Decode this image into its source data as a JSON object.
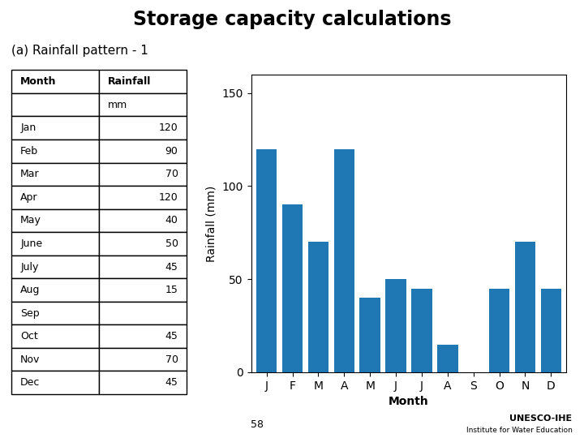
{
  "chart_data": [
    {
      "type": "table",
      "columns": [
        "Month",
        "Rainfall"
      ],
      "units": [
        null,
        "mm"
      ],
      "rows": [
        [
          "Jan",
          120
        ],
        [
          "Feb",
          90
        ],
        [
          "Mar",
          70
        ],
        [
          "Apr",
          120
        ],
        [
          "May",
          40
        ],
        [
          "June",
          50
        ],
        [
          "July",
          45
        ],
        [
          "Aug",
          15
        ],
        [
          "Sep",
          null
        ],
        [
          "Oct",
          45
        ],
        [
          "Nov",
          70
        ],
        [
          "Dec",
          45
        ]
      ]
    },
    {
      "type": "bar",
      "title": "Storage capacity calculations",
      "subtitle": "(a) Rainfall pattern - 1",
      "categories": [
        "J",
        "F",
        "M",
        "A",
        "M",
        "J",
        "J",
        "A",
        "S",
        "O",
        "N",
        "D"
      ],
      "values": [
        120,
        90,
        70,
        120,
        40,
        50,
        45,
        15,
        0,
        45,
        70,
        45
      ],
      "xlabel": "Month",
      "ylabel": "Rainfall (mm)",
      "ylim": [
        0,
        160
      ],
      "yticks": [
        0,
        50,
        100,
        150
      ],
      "annotations": [
        "58",
        "UNESCO-IHE",
        "Institute for Water Education"
      ]
    }
  ]
}
